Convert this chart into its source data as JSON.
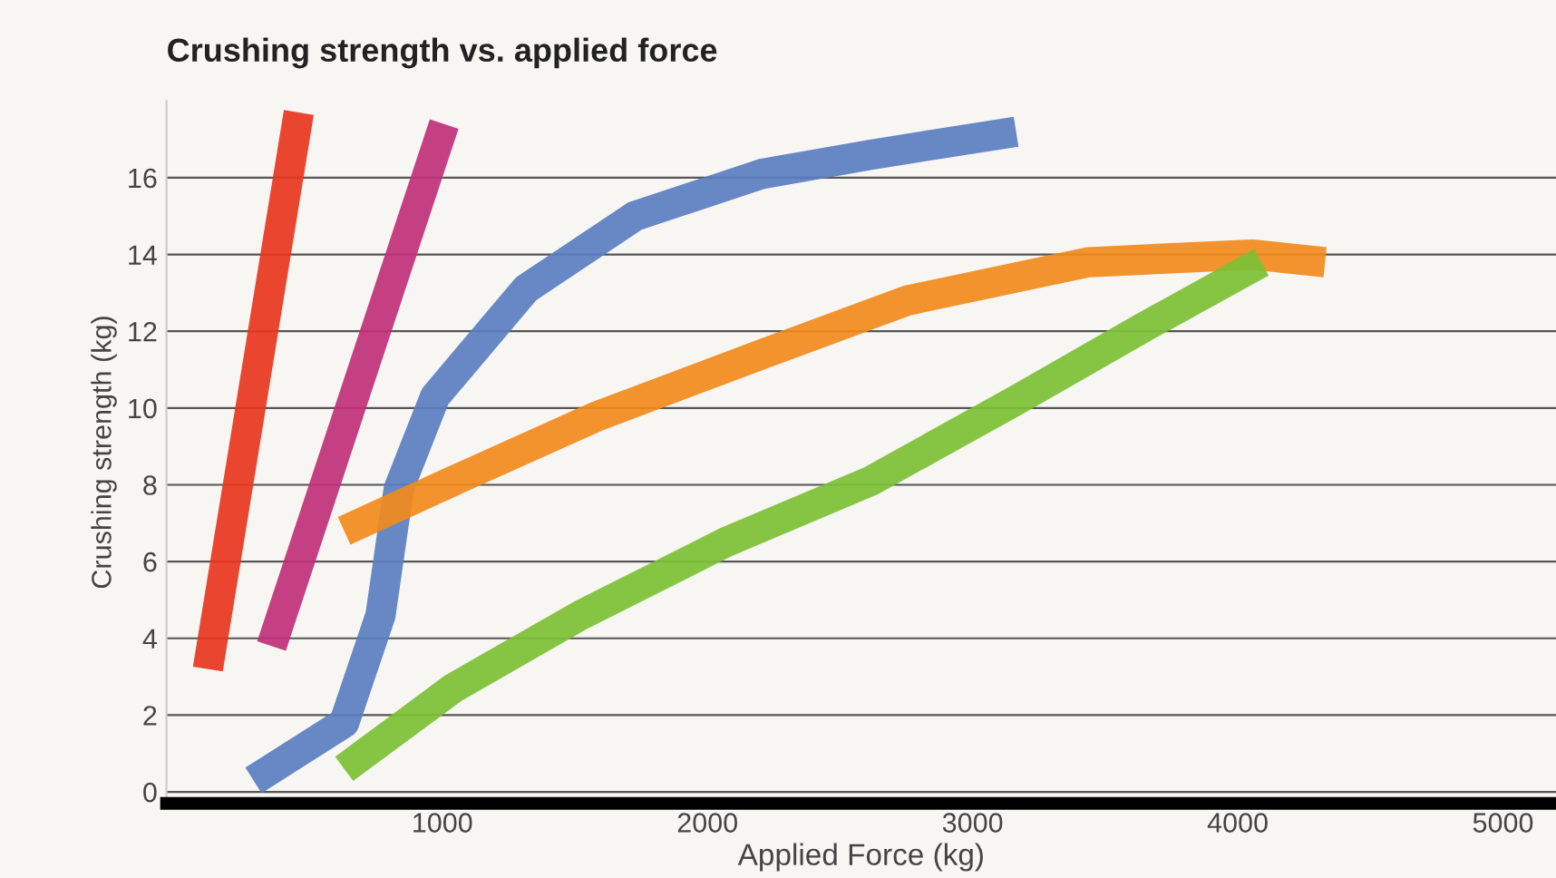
{
  "chart_data": {
    "type": "line",
    "title": "Crushing strength vs. applied force",
    "xlabel": "Applied Force (kg)",
    "ylabel": "Crushing strength (kg)",
    "xlim": [
      -40,
      5200
    ],
    "ylim": [
      -0.3,
      18
    ],
    "xticks": [
      1000,
      2000,
      3000,
      4000,
      5000
    ],
    "yticks": [
      0,
      2,
      4,
      6,
      8,
      10,
      12,
      14,
      16
    ],
    "grid": "y",
    "series": [
      {
        "color": "#e8351e",
        "x": [
          116,
          459
        ],
        "values": [
          3.2,
          17.7
        ]
      },
      {
        "color": "#c0307a",
        "x": [
          356,
          1007
        ],
        "values": [
          3.8,
          17.4
        ]
      },
      {
        "color": "#5a7ec0",
        "x": [
          288,
          630,
          767,
          836,
          973,
          1315,
          1726,
          2205,
          2616,
          3164
        ],
        "values": [
          0.3,
          1.8,
          4.6,
          7.9,
          10.3,
          13.1,
          15.0,
          16.1,
          16.6,
          17.2
        ]
      },
      {
        "color": "#f28a1c",
        "x": [
          630,
          1041,
          1589,
          2205,
          2753,
          3438,
          4055,
          4329
        ],
        "values": [
          6.8,
          8.1,
          9.8,
          11.4,
          12.8,
          13.8,
          14.0,
          13.8
        ]
      },
      {
        "color": "#7cc035",
        "x": [
          630,
          1041,
          1521,
          2068,
          2616,
          3164,
          3644,
          4089
        ],
        "values": [
          0.6,
          2.7,
          4.6,
          6.5,
          8.1,
          10.2,
          12.1,
          13.8
        ]
      }
    ]
  }
}
